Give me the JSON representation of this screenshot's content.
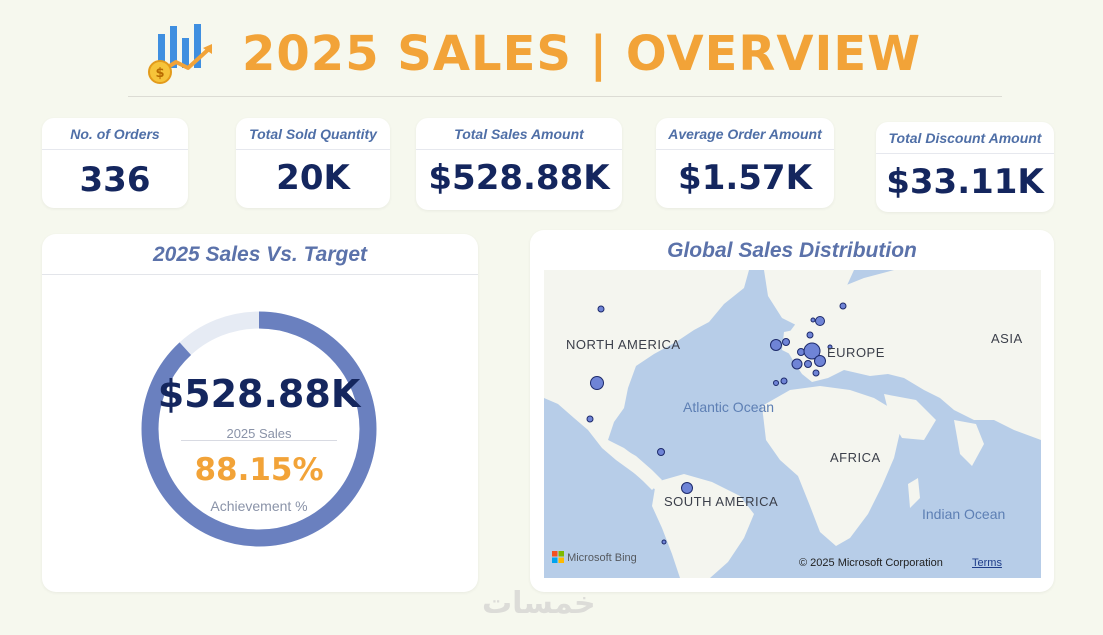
{
  "header": {
    "title": "2025 SALES | OVERVIEW",
    "logo_icon": "bar-chart-coin-icon"
  },
  "kpis": [
    {
      "label": "No. of Orders",
      "value": "336"
    },
    {
      "label": "Total Sold Quantity",
      "value": "20K"
    },
    {
      "label": "Total Sales Amount",
      "value": "$528.88K"
    },
    {
      "label": "Average Order Amount",
      "value": "$1.57K"
    },
    {
      "label": "Total Discount Amount",
      "value": "$33.11K"
    }
  ],
  "gauge": {
    "title": "2025 Sales Vs. Target",
    "value": "$528.88K",
    "value_label": "2025 Sales",
    "achievement": "88.15%",
    "achievement_fraction": 0.8815,
    "achievement_label": "Achievement %",
    "colors": {
      "fill": "#6a80bf",
      "track": "#e6ebf4",
      "accent": "#f2a338"
    }
  },
  "map": {
    "title": "Global Sales Distribution",
    "labels": {
      "north_america": "NORTH AMERICA",
      "europe": "EUROPE",
      "asia": "ASIA",
      "africa": "AFRICA",
      "south_america": "SOUTH AMERICA",
      "atlantic": "Atlantic Ocean",
      "indian": "Indian Ocean"
    },
    "attribution": {
      "bing": "Microsoft Bing",
      "copyright": "© 2025 Microsoft Corporation",
      "terms": "Terms"
    },
    "bubble_color": "#6f84d6"
  },
  "watermark": "خمسات"
}
